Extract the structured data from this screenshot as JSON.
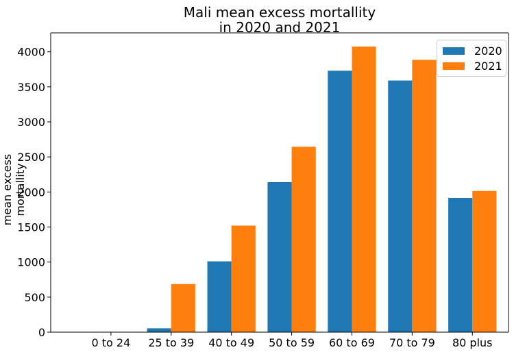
{
  "chart_data": {
    "type": "bar",
    "title_line1": "Mali mean excess mortallity",
    "title_line2": "in 2020 and 2021",
    "xlabel": "",
    "ylabel": "mean excess mortallity",
    "ylim": [
      0,
      4270
    ],
    "yticks": [
      0,
      500,
      1000,
      1500,
      2000,
      2500,
      3000,
      3500,
      4000
    ],
    "categories": [
      "0 to 24",
      "25 to 39",
      "40 to 49",
      "50 to 59",
      "60 to 69",
      "70 to 79",
      "80 plus"
    ],
    "series": [
      {
        "name": "2020",
        "color": "#1f77b4",
        "values": [
          0,
          55,
          1010,
          2140,
          3730,
          3590,
          1915
        ]
      },
      {
        "name": "2021",
        "color": "#ff7f0e",
        "values": [
          0,
          685,
          1520,
          2645,
          4075,
          3885,
          2015
        ]
      }
    ],
    "legend_position": "top-right",
    "grid": false
  }
}
